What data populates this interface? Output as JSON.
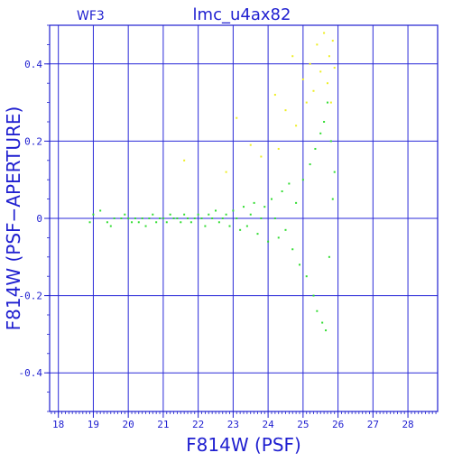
{
  "chart_data": {
    "type": "scatter",
    "title": "lmc_u4ax82",
    "corner_label": "WF3",
    "xlabel": "F814W (PSF)",
    "ylabel": "F814W (PSF−APERTURE)",
    "xlim": [
      17.75,
      28.85
    ],
    "ylim": [
      -0.5,
      0.5
    ],
    "x_ticks": [
      18,
      19,
      20,
      21,
      22,
      23,
      24,
      25,
      26,
      27,
      28
    ],
    "x_tick_labels": [
      "18",
      "19",
      "20",
      "21",
      "22",
      "23",
      "24",
      "25",
      "26",
      "27",
      "28"
    ],
    "y_ticks": [
      -0.4,
      -0.2,
      0,
      0.2,
      0.4
    ],
    "y_tick_labels": [
      "-0.4",
      "-0.2",
      "0",
      "0.2",
      "0.4"
    ],
    "grid": true,
    "colors": {
      "axis": "#1f1fd0",
      "grid": "#2a2ad8",
      "green": "#33dd33",
      "yellow": "#eeee22"
    },
    "series": [
      {
        "color": "green",
        "points": [
          [
            18.9,
            -0.01
          ],
          [
            19.0,
            0.01
          ],
          [
            19.2,
            0.02
          ],
          [
            19.4,
            -0.01
          ],
          [
            19.5,
            -0.02
          ],
          [
            19.6,
            0.0
          ],
          [
            19.8,
            0.0
          ],
          [
            19.9,
            0.01
          ],
          [
            20.0,
            0.0
          ],
          [
            20.1,
            -0.01
          ],
          [
            20.2,
            0.0
          ],
          [
            20.3,
            -0.01
          ],
          [
            20.4,
            0.0
          ],
          [
            20.5,
            -0.02
          ],
          [
            20.6,
            0.0
          ],
          [
            20.7,
            0.01
          ],
          [
            20.8,
            -0.01
          ],
          [
            20.9,
            0.0
          ],
          [
            21.0,
            0.0
          ],
          [
            21.1,
            -0.01
          ],
          [
            21.2,
            0.01
          ],
          [
            21.3,
            0.0
          ],
          [
            21.4,
            0.0
          ],
          [
            21.5,
            -0.01
          ],
          [
            21.6,
            0.01
          ],
          [
            21.7,
            0.0
          ],
          [
            21.8,
            -0.01
          ],
          [
            21.9,
            0.0
          ],
          [
            22.0,
            0.01
          ],
          [
            22.1,
            0.0
          ],
          [
            22.2,
            -0.02
          ],
          [
            22.3,
            0.01
          ],
          [
            22.4,
            0.0
          ],
          [
            22.5,
            0.02
          ],
          [
            22.6,
            -0.01
          ],
          [
            22.7,
            0.0
          ],
          [
            22.8,
            0.01
          ],
          [
            22.9,
            -0.02
          ],
          [
            23.0,
            0.02
          ],
          [
            23.1,
            0.0
          ],
          [
            23.2,
            -0.03
          ],
          [
            23.3,
            0.03
          ],
          [
            23.4,
            -0.02
          ],
          [
            23.5,
            0.01
          ],
          [
            23.6,
            0.04
          ],
          [
            23.7,
            -0.04
          ],
          [
            23.8,
            0.0
          ],
          [
            23.9,
            0.03
          ],
          [
            24.0,
            -0.06
          ],
          [
            24.1,
            0.05
          ],
          [
            24.2,
            0.0
          ],
          [
            24.3,
            -0.05
          ],
          [
            24.4,
            0.07
          ],
          [
            24.5,
            -0.03
          ],
          [
            24.6,
            0.09
          ],
          [
            24.7,
            -0.08
          ],
          [
            24.8,
            0.04
          ],
          [
            24.9,
            -0.12
          ],
          [
            25.0,
            0.1
          ],
          [
            25.1,
            -0.15
          ],
          [
            25.2,
            0.14
          ],
          [
            25.3,
            -0.2
          ],
          [
            25.35,
            0.18
          ],
          [
            25.4,
            -0.24
          ],
          [
            25.5,
            0.22
          ],
          [
            25.55,
            -0.27
          ],
          [
            25.6,
            0.25
          ],
          [
            25.65,
            -0.29
          ],
          [
            25.7,
            0.3
          ],
          [
            25.75,
            -0.1
          ],
          [
            25.8,
            0.2
          ],
          [
            25.85,
            0.05
          ],
          [
            25.9,
            0.12
          ]
        ]
      },
      {
        "color": "yellow",
        "points": [
          [
            21.6,
            0.15
          ],
          [
            22.8,
            0.12
          ],
          [
            23.1,
            0.26
          ],
          [
            23.5,
            0.19
          ],
          [
            23.8,
            0.16
          ],
          [
            24.2,
            0.32
          ],
          [
            24.3,
            0.18
          ],
          [
            24.5,
            0.28
          ],
          [
            24.7,
            0.42
          ],
          [
            24.8,
            0.24
          ],
          [
            25.0,
            0.36
          ],
          [
            25.1,
            0.3
          ],
          [
            25.2,
            0.4
          ],
          [
            25.3,
            0.33
          ],
          [
            25.4,
            0.45
          ],
          [
            25.5,
            0.38
          ],
          [
            25.6,
            0.48
          ],
          [
            25.7,
            0.35
          ],
          [
            25.75,
            0.42
          ],
          [
            25.8,
            0.3
          ],
          [
            25.85,
            0.46
          ],
          [
            25.9,
            0.39
          ]
        ]
      }
    ]
  }
}
